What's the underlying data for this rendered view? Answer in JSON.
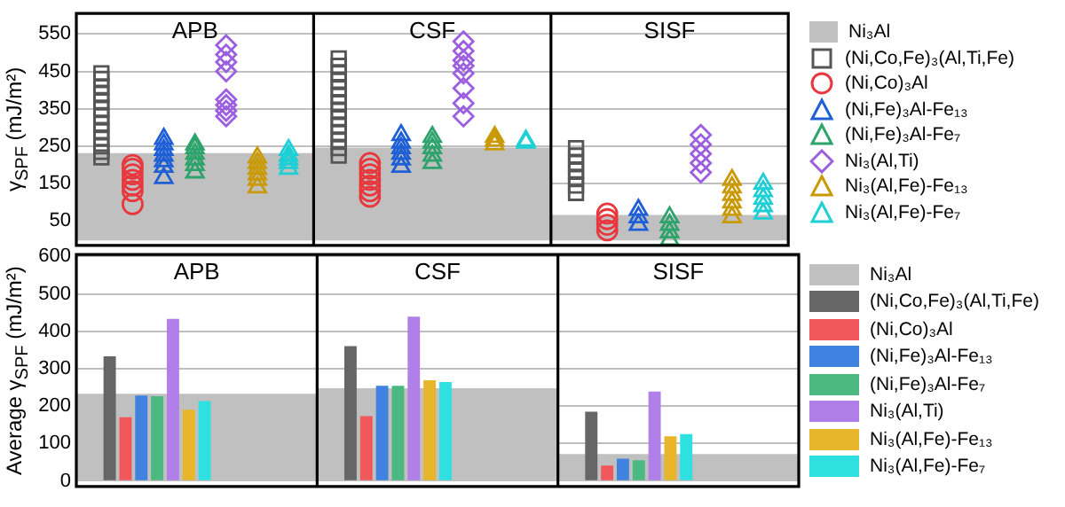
{
  "chart_data": [
    {
      "type": "scatter",
      "ylabel": "γ$_{SPF}$ (mJ/m²)",
      "categories": [
        "APB",
        "CSF",
        "SISF"
      ],
      "ylim": [
        -15,
        605
      ],
      "yticks": [
        50,
        150,
        250,
        350,
        450,
        550
      ],
      "grid": "y",
      "legend": "right",
      "series": [
        {
          "name": "Ni₃Al",
          "type": "bar",
          "color": "#c0c0c0",
          "values": [
            230,
            245,
            65
          ]
        },
        {
          "name": "(Ni,Co,Fe)₃(Al,Ti,Fe)",
          "color": "#555555",
          "marker": "square",
          "x": [
            "APB",
            "APB",
            "APB",
            "APB",
            "APB",
            "APB",
            "APB",
            "APB",
            "APB",
            "APB",
            "APB",
            "APB",
            "APB",
            "CSF",
            "CSF",
            "CSF",
            "CSF",
            "CSF",
            "CSF",
            "CSF",
            "CSF",
            "CSF",
            "CSF",
            "CSF",
            "CSF",
            "CSF",
            "CSF",
            "SISF",
            "SISF",
            "SISF",
            "SISF",
            "SISF",
            "SISF",
            "SISF"
          ],
          "values": [
            220,
            235,
            250,
            270,
            290,
            310,
            330,
            350,
            370,
            390,
            410,
            430,
            445,
            225,
            245,
            265,
            285,
            305,
            325,
            345,
            365,
            385,
            405,
            425,
            445,
            465,
            485,
            125,
            145,
            165,
            185,
            205,
            225,
            245
          ]
        },
        {
          "name": "(Ni,Co)₃Al",
          "color": "#e8383d",
          "marker": "circle",
          "x": [
            "APB",
            "APB",
            "APB",
            "APB",
            "APB",
            "APB",
            "APB",
            "CSF",
            "CSF",
            "CSF",
            "CSF",
            "CSF",
            "CSF",
            "CSF",
            "SISF",
            "SISF",
            "SISF",
            "SISF"
          ],
          "values": [
            95,
            130,
            145,
            160,
            175,
            190,
            200,
            115,
            130,
            145,
            160,
            175,
            190,
            205,
            25,
            40,
            55,
            70
          ]
        },
        {
          "name": "(Ni,Fe)₃Al-Fe₁₃",
          "color": "#1f5fd6",
          "marker": "triangle",
          "x": [
            "APB",
            "APB",
            "APB",
            "APB",
            "APB",
            "APB",
            "APB",
            "CSF",
            "CSF",
            "CSF",
            "CSF",
            "CSF",
            "CSF",
            "SISF",
            "SISF",
            "SISF"
          ],
          "values": [
            165,
            195,
            210,
            225,
            240,
            255,
            270,
            195,
            215,
            230,
            245,
            260,
            280,
            40,
            60,
            80
          ]
        },
        {
          "name": "(Ni,Fe)₃Al-Fe₇",
          "color": "#2ea36b",
          "marker": "triangle",
          "x": [
            "APB",
            "APB",
            "APB",
            "APB",
            "APB",
            "APB",
            "CSF",
            "CSF",
            "CSF",
            "CSF",
            "CSF",
            "SISF",
            "SISF",
            "SISF",
            "SISF"
          ],
          "values": [
            180,
            200,
            215,
            230,
            245,
            255,
            205,
            225,
            245,
            260,
            275,
            0,
            20,
            40,
            60
          ]
        },
        {
          "name": "Ni₃(Al,Ti)",
          "color": "#9b5fe0",
          "marker": "diamond",
          "x": [
            "APB",
            "APB",
            "APB",
            "APB",
            "APB",
            "APB",
            "APB",
            "APB",
            "CSF",
            "CSF",
            "CSF",
            "CSF",
            "CSF",
            "CSF",
            "CSF",
            "CSF",
            "SISF",
            "SISF",
            "SISF",
            "SISF",
            "SISF"
          ],
          "values": [
            330,
            345,
            360,
            375,
            450,
            475,
            495,
            520,
            330,
            365,
            405,
            445,
            465,
            480,
            505,
            530,
            180,
            205,
            230,
            255,
            280
          ]
        },
        {
          "name": "Ni₃(Al,Fe)-Fe₁₃",
          "color": "#c99a06",
          "marker": "triangle",
          "x": [
            "APB",
            "APB",
            "APB",
            "APB",
            "APB",
            "APB",
            "CSF",
            "CSF",
            "CSF",
            "SISF",
            "SISF",
            "SISF",
            "SISF",
            "SISF",
            "SISF"
          ],
          "values": [
            140,
            160,
            175,
            190,
            205,
            220,
            255,
            265,
            275,
            60,
            80,
            100,
            120,
            140,
            160
          ]
        },
        {
          "name": "Ni₃(Al,Fe)-Fe₇",
          "color": "#1ecfd6",
          "marker": "triangle",
          "x": [
            "APB",
            "APB",
            "APB",
            "APB",
            "APB",
            "CSF",
            "CSF",
            "SISF",
            "SISF",
            "SISF",
            "SISF",
            "SISF"
          ],
          "values": [
            190,
            205,
            215,
            225,
            240,
            260,
            265,
            70,
            90,
            110,
            130,
            150
          ]
        }
      ]
    },
    {
      "type": "bar",
      "ylabel": "Average γ$_{SPF}$ (mJ/m²)",
      "categories": [
        "APB",
        "CSF",
        "SISF"
      ],
      "ylim": [
        -15,
        605
      ],
      "yticks": [
        0,
        100,
        200,
        300,
        400,
        500,
        600
      ],
      "grid": "y",
      "legend": "right",
      "series": [
        {
          "name": "Ni₃Al",
          "type": "bar",
          "color": "#c0c0c0",
          "values": [
            231,
            246,
            70
          ]
        },
        {
          "name": "(Ni,Co,Fe)₃(Al,Ti,Fe)",
          "color": "#666666",
          "values": [
            333,
            360,
            185
          ]
        },
        {
          "name": "(Ni,Co)₃Al",
          "color": "#f0585c",
          "values": [
            170,
            173,
            41
          ]
        },
        {
          "name": "(Ni,Fe)₃Al-Fe₁₃",
          "color": "#3f82e0",
          "values": [
            228,
            254,
            59
          ]
        },
        {
          "name": "(Ni,Fe)₃Al-Fe₇",
          "color": "#4cb882",
          "values": [
            226,
            254,
            55
          ]
        },
        {
          "name": "Ni₃(Al,Ti)",
          "color": "#b07fe8",
          "values": [
            433,
            439,
            239
          ]
        },
        {
          "name": "Ni₃(Al,Fe)-Fe₁₃",
          "color": "#e8b62a",
          "values": [
            190,
            269,
            119
          ]
        },
        {
          "name": "Ni₃(Al,Fe)-Fe₇",
          "color": "#2ee0e0",
          "values": [
            213,
            264,
            125
          ]
        }
      ]
    }
  ]
}
